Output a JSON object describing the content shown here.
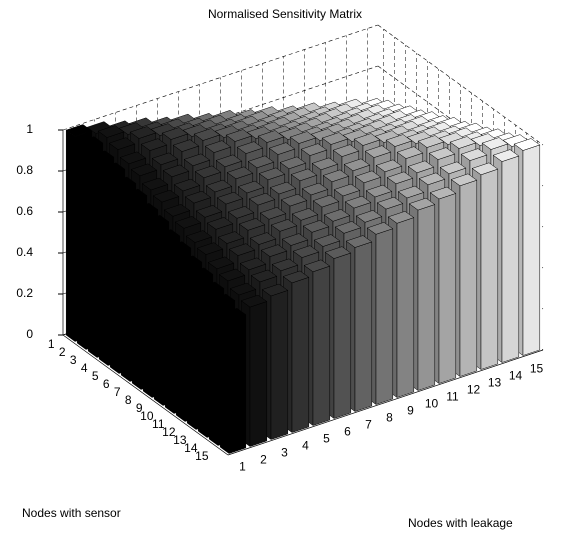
{
  "chart_data": {
    "type": "bar3d",
    "title": "Normalised Sensitivity Matrix",
    "x_label": "Nodes with leakage",
    "y_label": "Nodes with sensor",
    "xticks": [
      1,
      2,
      3,
      4,
      5,
      6,
      7,
      8,
      9,
      10,
      11,
      12,
      13,
      14,
      15
    ],
    "yticks": [
      1,
      2,
      3,
      4,
      5,
      6,
      7,
      8,
      9,
      10,
      11,
      12,
      13,
      14,
      15
    ],
    "zticks": [
      0,
      0.2,
      0.4,
      0.6,
      0.8,
      1
    ],
    "xlim": [
      0.5,
      15.5
    ],
    "ylim": [
      0.5,
      15.5
    ],
    "zlim": [
      0,
      1
    ],
    "grid": true,
    "colors": [
      "#000000",
      "#121212",
      "#242424",
      "#363636",
      "#494949",
      "#5b5b5b",
      "#6d6d6d",
      "#808080",
      "#929292",
      "#a4a4a4",
      "#b6b6b6",
      "#c8c8c8",
      "#dbdbdb",
      "#ededed",
      "#ffffff"
    ],
    "values": [
      [
        1,
        0.98,
        0.95,
        0.93,
        0.9,
        0.88,
        0.85,
        0.83,
        0.8,
        0.78,
        0.75,
        0.73,
        0.7,
        0.68,
        0.65
      ],
      [
        0.98,
        1,
        0.98,
        0.95,
        0.93,
        0.9,
        0.88,
        0.85,
        0.83,
        0.8,
        0.78,
        0.75,
        0.73,
        0.7,
        0.68
      ],
      [
        0.95,
        0.98,
        1,
        0.98,
        0.95,
        0.93,
        0.9,
        0.88,
        0.85,
        0.83,
        0.8,
        0.78,
        0.75,
        0.73,
        0.7
      ],
      [
        0.93,
        0.95,
        0.98,
        1,
        0.98,
        0.95,
        0.93,
        0.9,
        0.88,
        0.85,
        0.83,
        0.8,
        0.78,
        0.75,
        0.73
      ],
      [
        0.9,
        0.93,
        0.95,
        0.98,
        1,
        0.98,
        0.95,
        0.93,
        0.9,
        0.88,
        0.85,
        0.83,
        0.8,
        0.78,
        0.75
      ],
      [
        0.88,
        0.9,
        0.93,
        0.95,
        0.98,
        1,
        0.98,
        0.95,
        0.93,
        0.9,
        0.88,
        0.85,
        0.83,
        0.8,
        0.78
      ],
      [
        0.85,
        0.88,
        0.9,
        0.93,
        0.95,
        0.98,
        1,
        0.98,
        0.95,
        0.93,
        0.9,
        0.88,
        0.85,
        0.83,
        0.8
      ],
      [
        0.83,
        0.85,
        0.88,
        0.9,
        0.93,
        0.95,
        0.98,
        1,
        0.98,
        0.95,
        0.93,
        0.9,
        0.88,
        0.85,
        0.83
      ],
      [
        0.8,
        0.83,
        0.85,
        0.88,
        0.9,
        0.93,
        0.95,
        0.98,
        1,
        0.98,
        0.95,
        0.93,
        0.9,
        0.88,
        0.85
      ],
      [
        0.78,
        0.8,
        0.83,
        0.85,
        0.88,
        0.9,
        0.93,
        0.95,
        0.98,
        1,
        0.98,
        0.95,
        0.93,
        0.9,
        0.88
      ],
      [
        0.75,
        0.78,
        0.8,
        0.83,
        0.85,
        0.88,
        0.9,
        0.93,
        0.95,
        0.98,
        1,
        0.98,
        0.95,
        0.93,
        0.9
      ],
      [
        0.73,
        0.75,
        0.78,
        0.8,
        0.83,
        0.85,
        0.88,
        0.9,
        0.93,
        0.95,
        0.98,
        1,
        0.98,
        0.95,
        0.93
      ],
      [
        0.7,
        0.73,
        0.75,
        0.78,
        0.8,
        0.83,
        0.85,
        0.88,
        0.9,
        0.93,
        0.95,
        0.98,
        1,
        0.98,
        0.95
      ],
      [
        0.68,
        0.7,
        0.73,
        0.75,
        0.78,
        0.8,
        0.83,
        0.85,
        0.88,
        0.9,
        0.93,
        0.95,
        0.98,
        1,
        0.98
      ],
      [
        0.65,
        0.68,
        0.7,
        0.73,
        0.75,
        0.78,
        0.8,
        0.83,
        0.85,
        0.88,
        0.9,
        0.93,
        0.95,
        0.98,
        1
      ]
    ]
  }
}
